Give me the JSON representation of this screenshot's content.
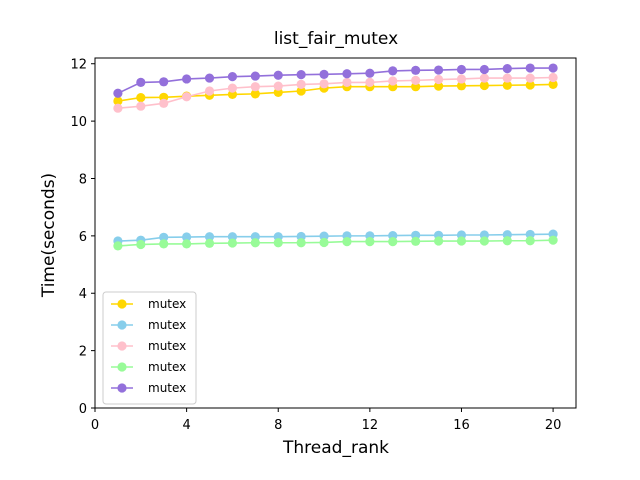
{
  "chart_data": {
    "type": "line",
    "title": "list_fair_mutex",
    "xlabel": "Thread_rank",
    "ylabel": "Time(seconds)",
    "xlim": [
      0,
      21
    ],
    "ylim": [
      0,
      12.2
    ],
    "xticks": [
      0,
      4,
      8,
      12,
      16,
      20
    ],
    "yticks": [
      0,
      2,
      4,
      6,
      8,
      10,
      12
    ],
    "grid": false,
    "legend_position": "lower-left",
    "x": [
      1,
      2,
      3,
      4,
      5,
      6,
      7,
      8,
      9,
      10,
      11,
      12,
      13,
      14,
      15,
      16,
      17,
      18,
      19,
      20
    ],
    "series": [
      {
        "name": "mutex",
        "color": "#ffd700",
        "values": [
          10.7,
          10.82,
          10.83,
          10.87,
          10.9,
          10.93,
          10.95,
          11.0,
          11.05,
          11.15,
          11.2,
          11.2,
          11.2,
          11.2,
          11.22,
          11.23,
          11.24,
          11.25,
          11.26,
          11.28
        ]
      },
      {
        "name": "mutex",
        "color": "#87ceeb",
        "values": [
          5.82,
          5.85,
          5.95,
          5.96,
          5.97,
          5.97,
          5.97,
          5.97,
          5.98,
          5.99,
          6.0,
          6.0,
          6.01,
          6.02,
          6.02,
          6.03,
          6.03,
          6.04,
          6.05,
          6.06
        ]
      },
      {
        "name": "mutex",
        "color": "#ffc0cb",
        "values": [
          10.45,
          10.52,
          10.62,
          10.85,
          11.05,
          11.15,
          11.2,
          11.22,
          11.28,
          11.3,
          11.35,
          11.35,
          11.4,
          11.42,
          11.45,
          11.47,
          11.5,
          11.5,
          11.5,
          11.52
        ]
      },
      {
        "name": "mutex",
        "color": "#98fb98",
        "values": [
          5.65,
          5.7,
          5.72,
          5.72,
          5.74,
          5.75,
          5.76,
          5.76,
          5.76,
          5.77,
          5.8,
          5.8,
          5.8,
          5.81,
          5.82,
          5.82,
          5.82,
          5.83,
          5.83,
          5.85
        ]
      },
      {
        "name": "mutex",
        "color": "#9370db",
        "values": [
          10.97,
          11.35,
          11.37,
          11.47,
          11.5,
          11.55,
          11.57,
          11.6,
          11.62,
          11.63,
          11.65,
          11.67,
          11.75,
          11.77,
          11.78,
          11.8,
          11.8,
          11.83,
          11.85,
          11.85
        ]
      }
    ]
  }
}
